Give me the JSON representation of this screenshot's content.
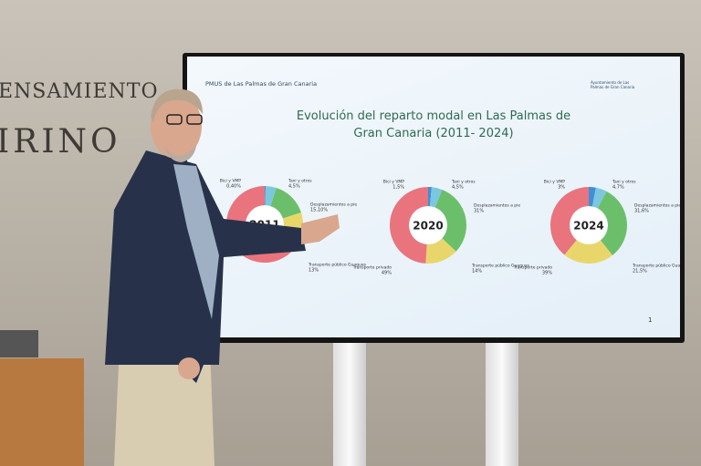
{
  "wall_text": [
    "ENSAMIENTO",
    "IRINO"
  ],
  "slide": {
    "header": "PMUS de Las Palmas de Gran Canaria",
    "logo_text": "Ayuntamiento de Las Palmas de Gran Canaria",
    "title": "Evolución del reparto modal en Las Palmas de Gran Canaria (2011- 2024)",
    "page_number": "1",
    "chart_data": [
      {
        "type": "donut",
        "center_label": "2011",
        "categories": [
          "Bici y VMP",
          "Taxi y otros",
          "Desplazamientos a pie",
          "Transporte público Guaguas",
          null
        ],
        "values": [
          0.4,
          4.5,
          15.1,
          13,
          67
        ],
        "value_labels": [
          "0,40%",
          "4,5%",
          "15,10%",
          "13%",
          null
        ],
        "colors": [
          "#3f8fd6",
          "#7cc7e0",
          "#6cbf6a",
          "#e9d66b",
          "#e9747d"
        ]
      },
      {
        "type": "donut",
        "center_label": "2020",
        "categories": [
          "Bici y VMP",
          "Taxi y otros",
          "Desplazamientos a pie",
          "Transporte público Guaguas",
          "Transporte privado"
        ],
        "values": [
          1.5,
          4.5,
          31,
          14,
          49
        ],
        "value_labels": [
          "1,5%",
          "4,5%",
          "31%",
          "14%",
          "49%"
        ],
        "colors": [
          "#3f8fd6",
          "#7cc7e0",
          "#6cbf6a",
          "#e9d66b",
          "#e9747d"
        ]
      },
      {
        "type": "donut",
        "center_label": "2024",
        "categories": [
          "Bici y VMP",
          "Taxi y otros",
          "Desplazamientos a pie",
          "Transporte público Guaguas",
          "Transporte privado"
        ],
        "values": [
          3,
          4.7,
          31.6,
          21.5,
          39
        ],
        "value_labels": [
          "3%",
          "4,7%",
          "31,6%",
          "21,5%",
          "39%"
        ],
        "colors": [
          "#3f8fd6",
          "#7cc7e0",
          "#6cbf6a",
          "#e9d66b",
          "#e9747d"
        ]
      }
    ]
  }
}
